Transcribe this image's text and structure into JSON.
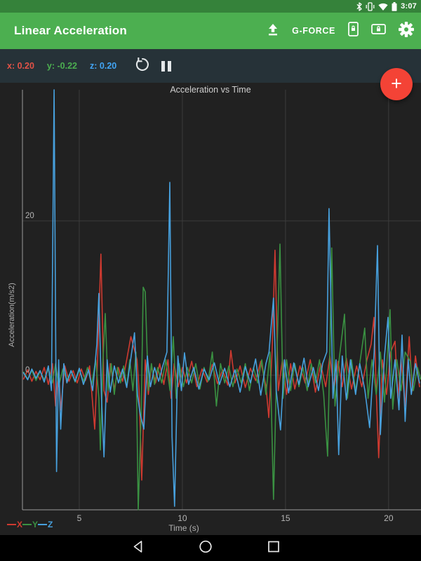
{
  "status_bar": {
    "time": "3:07",
    "icons": [
      "bluetooth-icon",
      "vibrate-icon",
      "wifi-icon",
      "battery-icon"
    ]
  },
  "app_bar": {
    "title": "Linear Acceleration",
    "gforce_label": "G-FORCE",
    "background_color": "#4caf50",
    "status_background_color": "#35823a"
  },
  "sensor_toolbar": {
    "x_value": "x: 0.20",
    "y_value": "y: -0.22",
    "z_value": "z: 0.20",
    "x_color": "#e25247",
    "y_color": "#4caf50",
    "z_color": "#42a5f5",
    "background_color": "#263238"
  },
  "fab": {
    "label": "+",
    "color": "#f44336"
  },
  "chart_data": {
    "type": "line",
    "title": "Acceleration vs Time",
    "xlabel": "Time (s)",
    "ylabel": "Acceleration(m/s2)",
    "x_ticks": [
      5,
      10,
      15,
      20
    ],
    "y_ticks": [
      0,
      20
    ],
    "xlim": [
      2.245,
      21.57
    ],
    "ylim": [
      -17.45,
      37.0
    ],
    "grid": true,
    "legend": [
      "X",
      "Y",
      "Z"
    ],
    "legend_position": "bottom-left",
    "background_color": "#212121",
    "series": [
      {
        "name": "X",
        "color": "#cf3a30",
        "points": [
          [
            2.3,
            -0.5
          ],
          [
            2.5,
            0.7
          ],
          [
            2.7,
            -0.8
          ],
          [
            2.9,
            0.5
          ],
          [
            3.1,
            -0.6
          ],
          [
            3.3,
            1.0
          ],
          [
            3.5,
            -1.2
          ],
          [
            3.7,
            1.5
          ],
          [
            3.85,
            -4.0
          ],
          [
            4.0,
            1.0
          ],
          [
            4.1,
            -4.5
          ],
          [
            4.3,
            1.2
          ],
          [
            4.5,
            -0.8
          ],
          [
            4.7,
            0.6
          ],
          [
            4.9,
            -1.0
          ],
          [
            5.1,
            0.8
          ],
          [
            5.3,
            -0.7
          ],
          [
            5.5,
            1.2
          ],
          [
            5.75,
            -7.0
          ],
          [
            5.9,
            3.0
          ],
          [
            6.05,
            15.7
          ],
          [
            6.2,
            -2.0
          ],
          [
            6.35,
            -3.5
          ],
          [
            6.5,
            1.5
          ],
          [
            6.7,
            -1.8
          ],
          [
            6.9,
            1.0
          ],
          [
            7.1,
            -0.8
          ],
          [
            7.3,
            2.0
          ],
          [
            7.5,
            5.0
          ],
          [
            7.65,
            3.5
          ],
          [
            7.8,
            2.0
          ],
          [
            7.9,
            -2.0
          ],
          [
            8.03,
            -13.6
          ],
          [
            8.2,
            2.0
          ],
          [
            8.35,
            -2.5
          ],
          [
            8.5,
            1.2
          ],
          [
            8.7,
            -1.0
          ],
          [
            8.9,
            1.5
          ],
          [
            9.1,
            -1.2
          ],
          [
            9.3,
            2.0
          ],
          [
            9.45,
            -3.0
          ],
          [
            9.6,
            1.5
          ],
          [
            9.8,
            -1.5
          ],
          [
            10.0,
            1.0
          ],
          [
            10.2,
            -1.0
          ],
          [
            10.45,
            1.8
          ],
          [
            10.7,
            -1.5
          ],
          [
            10.95,
            0.8
          ],
          [
            11.2,
            -0.9
          ],
          [
            11.45,
            1.4
          ],
          [
            11.7,
            -1.1
          ],
          [
            11.95,
            0.7
          ],
          [
            12.2,
            -1.3
          ],
          [
            12.35,
            3.2
          ],
          [
            12.55,
            -1.0
          ],
          [
            12.8,
            1.2
          ],
          [
            13.05,
            -1.6
          ],
          [
            13.3,
            0.9
          ],
          [
            13.55,
            -0.7
          ],
          [
            13.8,
            1.8
          ],
          [
            14.05,
            -1.4
          ],
          [
            14.19,
            -5.5
          ],
          [
            14.35,
            3.0
          ],
          [
            14.49,
            16.2
          ],
          [
            14.65,
            -2.0
          ],
          [
            14.85,
            2.0
          ],
          [
            15.05,
            -2.5
          ],
          [
            15.25,
            1.5
          ],
          [
            15.45,
            -1.8
          ],
          [
            15.7,
            1.2
          ],
          [
            15.95,
            -1.0
          ],
          [
            16.2,
            2.0
          ],
          [
            16.45,
            -2.2
          ],
          [
            16.7,
            1.5
          ],
          [
            16.95,
            -1.5
          ],
          [
            17.15,
            2.5
          ],
          [
            17.35,
            -2.0
          ],
          [
            17.55,
            1.8
          ],
          [
            17.75,
            -1.5
          ],
          [
            17.95,
            2.2
          ],
          [
            18.2,
            -1.8
          ],
          [
            18.45,
            1.2
          ],
          [
            18.7,
            -1.5
          ],
          [
            18.95,
            2.0
          ],
          [
            19.15,
            4.0
          ],
          [
            19.29,
            7.5
          ],
          [
            19.4,
            -2.0
          ],
          [
            19.52,
            -10.7
          ],
          [
            19.7,
            2.0
          ],
          [
            19.9,
            -2.5
          ],
          [
            20.1,
            3.0
          ],
          [
            20.31,
            4.4
          ],
          [
            20.45,
            -3.0
          ],
          [
            20.6,
            2.0
          ],
          [
            20.8,
            -4.0
          ],
          [
            21.0,
            5.0
          ],
          [
            21.15,
            -2.0
          ],
          [
            21.3,
            2.5
          ],
          [
            21.5,
            -1.5
          ]
        ]
      },
      {
        "name": "Y",
        "color": "#3a9142",
        "points": [
          [
            2.3,
            0.4
          ],
          [
            2.5,
            -0.5
          ],
          [
            2.7,
            0.6
          ],
          [
            2.9,
            -0.7
          ],
          [
            3.1,
            0.5
          ],
          [
            3.3,
            -0.6
          ],
          [
            3.5,
            0.8
          ],
          [
            3.7,
            -1.0
          ],
          [
            3.85,
            1.5
          ],
          [
            4.0,
            -1.5
          ],
          [
            4.2,
            0.8
          ],
          [
            4.4,
            -0.6
          ],
          [
            4.6,
            0.5
          ],
          [
            4.8,
            -0.9
          ],
          [
            5.0,
            0.7
          ],
          [
            5.2,
            -0.8
          ],
          [
            5.4,
            1.0
          ],
          [
            5.6,
            -1.2
          ],
          [
            5.8,
            2.0
          ],
          [
            5.95,
            -3.0
          ],
          [
            6.02,
            -9.7
          ],
          [
            6.15,
            2.0
          ],
          [
            6.26,
            8.0
          ],
          [
            6.4,
            -2.0
          ],
          [
            6.55,
            1.5
          ],
          [
            6.7,
            -2.5
          ],
          [
            6.85,
            1.0
          ],
          [
            7.0,
            -1.0
          ],
          [
            7.15,
            1.2
          ],
          [
            7.3,
            -1.5
          ],
          [
            7.45,
            2.0
          ],
          [
            7.6,
            -2.0
          ],
          [
            7.75,
            3.0
          ],
          [
            7.86,
            -17.45
          ],
          [
            8.0,
            -5.0
          ],
          [
            8.1,
            11.4
          ],
          [
            8.2,
            10.8
          ],
          [
            8.35,
            -2.0
          ],
          [
            8.5,
            1.5
          ],
          [
            8.65,
            -1.2
          ],
          [
            8.8,
            1.0
          ],
          [
            9.0,
            -1.0
          ],
          [
            9.2,
            2.0
          ],
          [
            9.4,
            -2.0
          ],
          [
            9.56,
            5.0
          ],
          [
            9.7,
            -3.0
          ],
          [
            9.85,
            1.5
          ],
          [
            10.05,
            -1.5
          ],
          [
            10.25,
            1.0
          ],
          [
            10.45,
            -1.0
          ],
          [
            10.65,
            1.5
          ],
          [
            10.85,
            -1.8
          ],
          [
            11.05,
            1.0
          ],
          [
            11.25,
            -0.8
          ],
          [
            11.45,
            3.0
          ],
          [
            11.65,
            -4.0
          ],
          [
            11.85,
            1.5
          ],
          [
            12.05,
            -1.0
          ],
          [
            12.25,
            1.2
          ],
          [
            12.45,
            -1.5
          ],
          [
            12.65,
            0.8
          ],
          [
            12.85,
            -1.0
          ],
          [
            13.05,
            1.5
          ],
          [
            13.25,
            -2.0
          ],
          [
            13.45,
            1.0
          ],
          [
            13.65,
            -1.0
          ],
          [
            13.85,
            2.0
          ],
          [
            14.05,
            -2.5
          ],
          [
            14.25,
            3.0
          ],
          [
            14.42,
            -16.1
          ],
          [
            14.6,
            4.0
          ],
          [
            14.73,
            17.0
          ],
          [
            14.88,
            -3.0
          ],
          [
            15.05,
            2.0
          ],
          [
            15.25,
            -2.0
          ],
          [
            15.45,
            1.5
          ],
          [
            15.65,
            -1.5
          ],
          [
            15.85,
            1.0
          ],
          [
            16.05,
            -2.0
          ],
          [
            16.25,
            1.5
          ],
          [
            16.45,
            -1.0
          ],
          [
            16.65,
            2.0
          ],
          [
            16.85,
            -2.5
          ],
          [
            17.04,
            -10.5
          ],
          [
            17.15,
            3.0
          ],
          [
            17.24,
            16.5
          ],
          [
            17.4,
            -4.0
          ],
          [
            17.6,
            2.0
          ],
          [
            17.86,
            7.9
          ],
          [
            18.0,
            -3.0
          ],
          [
            18.2,
            2.0
          ],
          [
            18.4,
            -2.0
          ],
          [
            18.6,
            1.5
          ],
          [
            18.84,
            6.1
          ],
          [
            19.0,
            -3.0
          ],
          [
            19.2,
            2.0
          ],
          [
            19.4,
            -2.5
          ],
          [
            19.6,
            3.0
          ],
          [
            19.8,
            -3.5
          ],
          [
            20.07,
            8.5
          ],
          [
            20.2,
            -4.4
          ],
          [
            20.4,
            2.0
          ],
          [
            20.6,
            -2.0
          ],
          [
            20.8,
            3.0
          ],
          [
            21.05,
            1.8
          ],
          [
            21.2,
            -2.0
          ],
          [
            21.4,
            1.0
          ],
          [
            21.55,
            -0.5
          ]
        ]
      },
      {
        "name": "Z",
        "color": "#47a0dd",
        "points": [
          [
            2.3,
            0.3
          ],
          [
            2.5,
            -0.6
          ],
          [
            2.7,
            0.8
          ],
          [
            2.9,
            -0.4
          ],
          [
            3.1,
            0.6
          ],
          [
            3.3,
            -0.9
          ],
          [
            3.5,
            1.2
          ],
          [
            3.65,
            -2.0
          ],
          [
            3.78,
            37.0
          ],
          [
            3.9,
            -12.5
          ],
          [
            4.0,
            2.0
          ],
          [
            4.1,
            -7.0
          ],
          [
            4.25,
            1.5
          ],
          [
            4.4,
            -1.0
          ],
          [
            4.6,
            0.6
          ],
          [
            4.8,
            -0.8
          ],
          [
            5.0,
            0.9
          ],
          [
            5.2,
            -1.2
          ],
          [
            5.45,
            0.7
          ],
          [
            5.65,
            -2.0
          ],
          [
            5.85,
            4.0
          ],
          [
            5.95,
            10.6
          ],
          [
            6.08,
            -3.0
          ],
          [
            6.2,
            -10.6
          ],
          [
            6.35,
            2.0
          ],
          [
            6.5,
            -2.2
          ],
          [
            6.7,
            1.2
          ],
          [
            6.9,
            -1.0
          ],
          [
            7.1,
            0.8
          ],
          [
            7.3,
            -1.6
          ],
          [
            7.5,
            2.2
          ],
          [
            7.68,
            5.5
          ],
          [
            7.82,
            -2.5
          ],
          [
            7.95,
            -5.0
          ],
          [
            8.13,
            -7.0
          ],
          [
            8.3,
            2.5
          ],
          [
            8.45,
            -1.5
          ],
          [
            8.65,
            1.0
          ],
          [
            8.85,
            -0.8
          ],
          [
            9.05,
            1.2
          ],
          [
            9.25,
            3.0
          ],
          [
            9.39,
            25.0
          ],
          [
            9.5,
            -8.0
          ],
          [
            9.62,
            -17.0
          ],
          [
            9.78,
            2.5
          ],
          [
            9.95,
            -2.0
          ],
          [
            10.1,
            2.9
          ],
          [
            10.3,
            -1.2
          ],
          [
            10.55,
            1.0
          ],
          [
            10.8,
            -1.8
          ],
          [
            11.05,
            0.8
          ],
          [
            11.3,
            -0.6
          ],
          [
            11.55,
            1.6
          ],
          [
            11.8,
            -1.2
          ],
          [
            12.05,
            0.9
          ],
          [
            12.3,
            -1.5
          ],
          [
            12.55,
            0.7
          ],
          [
            12.8,
            -2.2
          ],
          [
            13.05,
            1.1
          ],
          [
            13.3,
            -1.0
          ],
          [
            13.55,
            2.1
          ],
          [
            13.8,
            -2.6
          ],
          [
            14.05,
            1.5
          ],
          [
            14.2,
            3.0
          ],
          [
            14.42,
            10.0
          ],
          [
            14.55,
            -2.0
          ],
          [
            14.76,
            -7.1
          ],
          [
            14.95,
            2.0
          ],
          [
            15.15,
            -2.3
          ],
          [
            15.4,
            1.6
          ],
          [
            15.65,
            -1.2
          ],
          [
            15.9,
            2.2
          ],
          [
            16.1,
            -1.5
          ],
          [
            16.35,
            1.0
          ],
          [
            16.6,
            -2.0
          ],
          [
            16.8,
            1.5
          ],
          [
            17.0,
            3.0
          ],
          [
            17.11,
            21.6
          ],
          [
            17.3,
            -3.0
          ],
          [
            17.45,
            2.0
          ],
          [
            17.58,
            -10.3
          ],
          [
            17.75,
            2.5
          ],
          [
            17.95,
            -3.2
          ],
          [
            18.15,
            2.0
          ],
          [
            18.4,
            -2.5
          ],
          [
            18.6,
            1.5
          ],
          [
            18.85,
            -2.0
          ],
          [
            19.08,
            -6.8
          ],
          [
            19.3,
            3.0
          ],
          [
            19.46,
            16.8
          ],
          [
            19.6,
            -7.7
          ],
          [
            19.8,
            2.5
          ],
          [
            19.97,
            7.5
          ],
          [
            20.1,
            -3.0
          ],
          [
            20.31,
            2.0
          ],
          [
            20.5,
            -4.5
          ],
          [
            20.65,
            5.2
          ],
          [
            20.8,
            -6.0
          ],
          [
            20.95,
            2.0
          ],
          [
            21.1,
            -2.5
          ],
          [
            21.3,
            1.5
          ],
          [
            21.5,
            -1.0
          ]
        ]
      }
    ]
  },
  "nav_bar": {
    "icons": [
      "back-icon",
      "home-icon",
      "recents-icon"
    ]
  }
}
